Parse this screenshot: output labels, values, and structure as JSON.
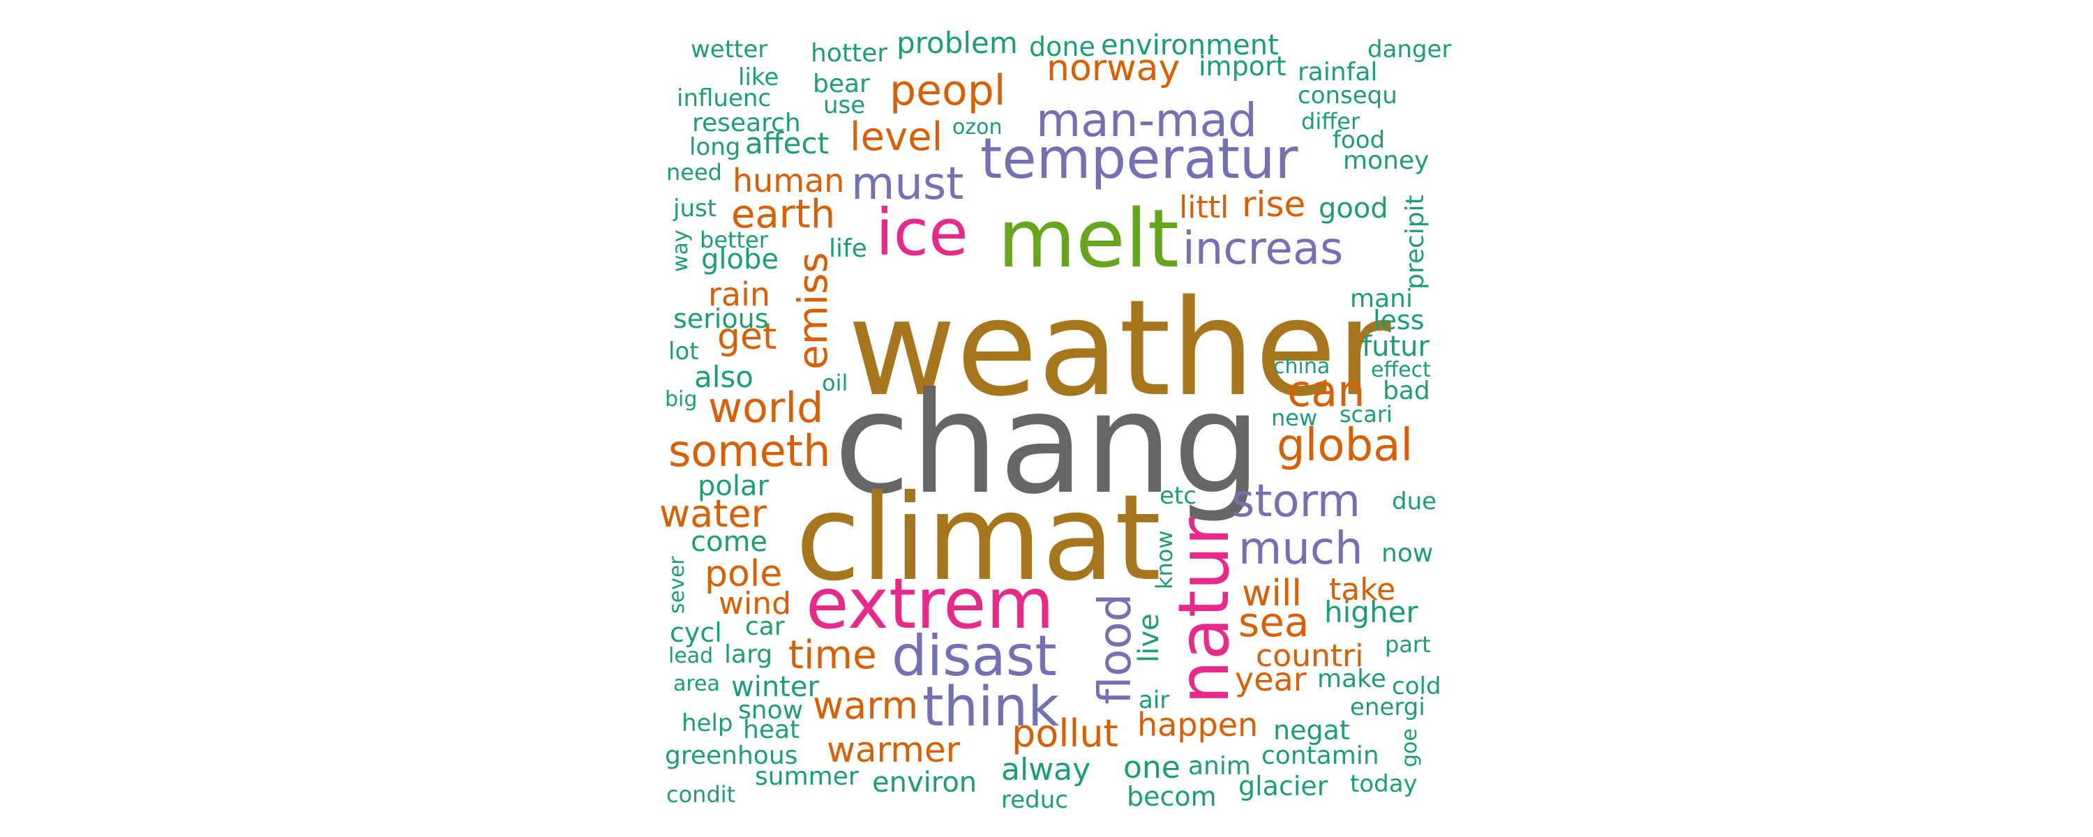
{
  "palette": {
    "teal": "#1b9e77",
    "orange": "#d95f02",
    "purple": "#7570b3",
    "pink": "#e7298a",
    "green": "#66a61e",
    "brown": "#a6761d",
    "gray": "#666666"
  },
  "words": [
    {
      "text": "weather",
      "color": "brown"
    },
    {
      "text": "chang",
      "color": "gray"
    },
    {
      "text": "climat",
      "color": "brown"
    },
    {
      "text": "melt",
      "color": "green"
    },
    {
      "text": "ice",
      "color": "pink"
    },
    {
      "text": "extrem",
      "color": "pink"
    },
    {
      "text": "natur",
      "color": "pink"
    },
    {
      "text": "temperatur",
      "color": "purple"
    },
    {
      "text": "man-mad",
      "color": "purple"
    },
    {
      "text": "increas",
      "color": "purple"
    },
    {
      "text": "disast",
      "color": "purple"
    },
    {
      "text": "think",
      "color": "purple"
    },
    {
      "text": "storm",
      "color": "purple"
    },
    {
      "text": "much",
      "color": "purple"
    },
    {
      "text": "must",
      "color": "purple"
    },
    {
      "text": "flood",
      "color": "purple"
    },
    {
      "text": "emiss",
      "color": "orange"
    },
    {
      "text": "peopl",
      "color": "orange"
    },
    {
      "text": "norway",
      "color": "orange"
    },
    {
      "text": "level",
      "color": "orange"
    },
    {
      "text": "earth",
      "color": "orange"
    },
    {
      "text": "human",
      "color": "orange"
    },
    {
      "text": "rain",
      "color": "orange"
    },
    {
      "text": "get",
      "color": "orange"
    },
    {
      "text": "world",
      "color": "orange"
    },
    {
      "text": "someth",
      "color": "orange"
    },
    {
      "text": "water",
      "color": "orange"
    },
    {
      "text": "pole",
      "color": "orange"
    },
    {
      "text": "wind",
      "color": "orange"
    },
    {
      "text": "time",
      "color": "orange"
    },
    {
      "text": "warm",
      "color": "orange"
    },
    {
      "text": "warmer",
      "color": "orange"
    },
    {
      "text": "pollut",
      "color": "orange"
    },
    {
      "text": "global",
      "color": "orange"
    },
    {
      "text": "can",
      "color": "orange"
    },
    {
      "text": "rise",
      "color": "orange"
    },
    {
      "text": "littl",
      "color": "orange"
    },
    {
      "text": "will",
      "color": "orange"
    },
    {
      "text": "sea",
      "color": "orange"
    },
    {
      "text": "take",
      "color": "orange"
    },
    {
      "text": "countri",
      "color": "orange"
    },
    {
      "text": "year",
      "color": "orange"
    },
    {
      "text": "happen",
      "color": "orange"
    },
    {
      "text": "wetter",
      "color": "teal"
    },
    {
      "text": "like",
      "color": "teal"
    },
    {
      "text": "influenc",
      "color": "teal"
    },
    {
      "text": "research",
      "color": "teal"
    },
    {
      "text": "long",
      "color": "teal"
    },
    {
      "text": "affect",
      "color": "teal"
    },
    {
      "text": "need",
      "color": "teal"
    },
    {
      "text": "just",
      "color": "teal"
    },
    {
      "text": "better",
      "color": "teal"
    },
    {
      "text": "way",
      "color": "teal"
    },
    {
      "text": "globe",
      "color": "teal"
    },
    {
      "text": "life",
      "color": "teal"
    },
    {
      "text": "serious",
      "color": "teal"
    },
    {
      "text": "lot",
      "color": "teal"
    },
    {
      "text": "also",
      "color": "teal"
    },
    {
      "text": "oil",
      "color": "teal"
    },
    {
      "text": "big",
      "color": "teal"
    },
    {
      "text": "polar",
      "color": "teal"
    },
    {
      "text": "come",
      "color": "teal"
    },
    {
      "text": "sever",
      "color": "teal"
    },
    {
      "text": "cycl",
      "color": "teal"
    },
    {
      "text": "car",
      "color": "teal"
    },
    {
      "text": "lead",
      "color": "teal"
    },
    {
      "text": "larg",
      "color": "teal"
    },
    {
      "text": "area",
      "color": "teal"
    },
    {
      "text": "winter",
      "color": "teal"
    },
    {
      "text": "snow",
      "color": "teal"
    },
    {
      "text": "help",
      "color": "teal"
    },
    {
      "text": "heat",
      "color": "teal"
    },
    {
      "text": "greenhous",
      "color": "teal"
    },
    {
      "text": "summer",
      "color": "teal"
    },
    {
      "text": "condit",
      "color": "teal"
    },
    {
      "text": "environ",
      "color": "teal"
    },
    {
      "text": "alway",
      "color": "teal"
    },
    {
      "text": "reduc",
      "color": "teal"
    },
    {
      "text": "one",
      "color": "teal"
    },
    {
      "text": "anim",
      "color": "teal"
    },
    {
      "text": "becom",
      "color": "teal"
    },
    {
      "text": "glacier",
      "color": "teal"
    },
    {
      "text": "contamin",
      "color": "teal"
    },
    {
      "text": "today",
      "color": "teal"
    },
    {
      "text": "negat",
      "color": "teal"
    },
    {
      "text": "energi",
      "color": "teal"
    },
    {
      "text": "goe",
      "color": "teal"
    },
    {
      "text": "cold",
      "color": "teal"
    },
    {
      "text": "make",
      "color": "teal"
    },
    {
      "text": "part",
      "color": "teal"
    },
    {
      "text": "higher",
      "color": "teal"
    },
    {
      "text": "now",
      "color": "teal"
    },
    {
      "text": "due",
      "color": "teal"
    },
    {
      "text": "know",
      "color": "teal"
    },
    {
      "text": "etc",
      "color": "teal"
    },
    {
      "text": "live",
      "color": "teal"
    },
    {
      "text": "air",
      "color": "teal"
    },
    {
      "text": "new",
      "color": "teal"
    },
    {
      "text": "scari",
      "color": "teal"
    },
    {
      "text": "bad",
      "color": "teal"
    },
    {
      "text": "effect",
      "color": "teal"
    },
    {
      "text": "china",
      "color": "teal"
    },
    {
      "text": "futur",
      "color": "teal"
    },
    {
      "text": "less",
      "color": "teal"
    },
    {
      "text": "mani",
      "color": "teal"
    },
    {
      "text": "precipit",
      "color": "teal"
    },
    {
      "text": "good",
      "color": "teal"
    },
    {
      "text": "money",
      "color": "teal"
    },
    {
      "text": "food",
      "color": "teal"
    },
    {
      "text": "differ",
      "color": "teal"
    },
    {
      "text": "consequ",
      "color": "teal"
    },
    {
      "text": "rainfal",
      "color": "teal"
    },
    {
      "text": "danger",
      "color": "teal"
    },
    {
      "text": "import",
      "color": "teal"
    },
    {
      "text": "environment",
      "color": "teal"
    },
    {
      "text": "done",
      "color": "teal"
    },
    {
      "text": "problem",
      "color": "teal"
    },
    {
      "text": "hotter",
      "color": "teal"
    },
    {
      "text": "bear",
      "color": "teal"
    },
    {
      "text": "use",
      "color": "teal"
    },
    {
      "text": "ozon",
      "color": "teal"
    }
  ]
}
